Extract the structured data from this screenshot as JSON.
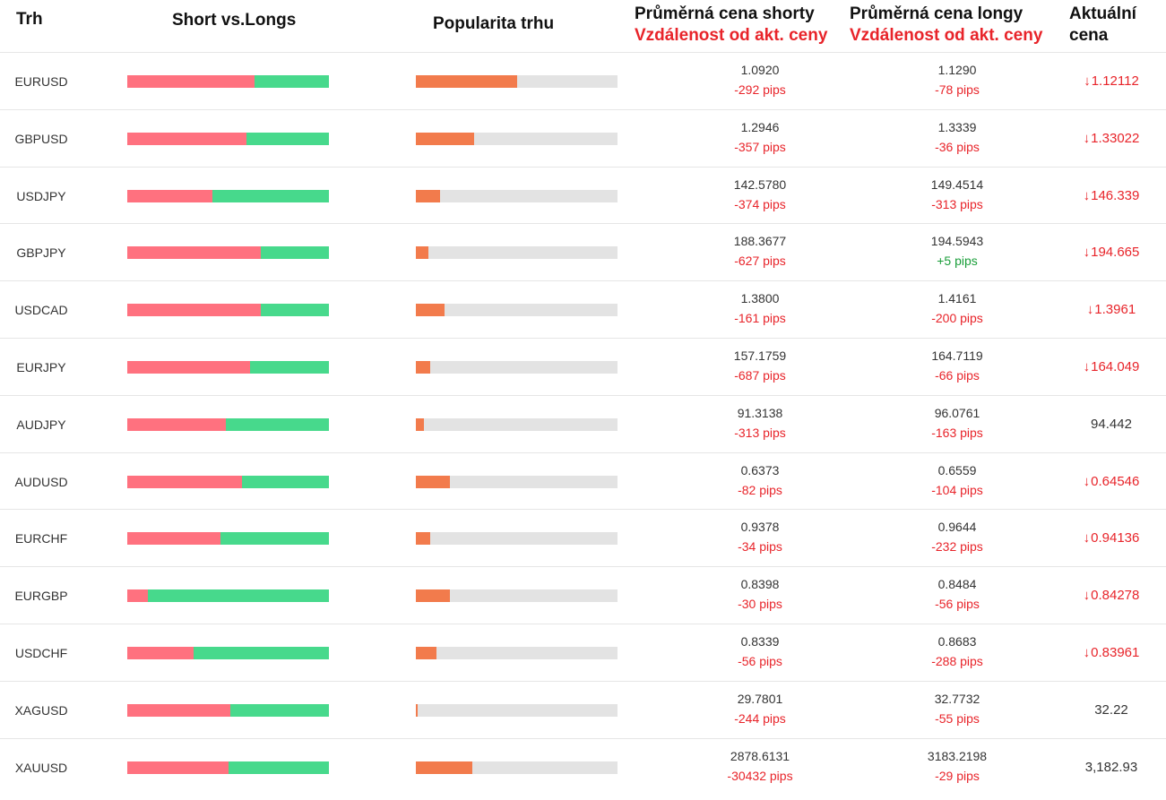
{
  "header": {
    "market": "Trh",
    "short_vs_long": "Short vs.Longs",
    "popularity": "Popularita trhu",
    "avg_short_1": "Průměrná cena shorty",
    "avg_short_2": "Vzdálenost od akt. ceny",
    "avg_long_1": "Průměrná cena longy",
    "avg_long_2": "Vzdálenost od akt. ceny",
    "current_1": "Aktuální",
    "current_2": "cena"
  },
  "colors": {
    "short": "#ff717f",
    "long": "#47d98c",
    "popularity": "#f27b4c",
    "negative": "#e8242a",
    "positive": "#1a9e3a"
  },
  "rows": [
    {
      "symbol": "EURUSD",
      "short_pct": 63,
      "popularity_pct": 50,
      "short_price": "1.0920",
      "short_dist": "-292 pips",
      "long_price": "1.1290",
      "long_dist": "-78 pips",
      "current": "1.12112",
      "down": true
    },
    {
      "symbol": "GBPUSD",
      "short_pct": 59,
      "popularity_pct": 29,
      "short_price": "1.2946",
      "short_dist": "-357 pips",
      "long_price": "1.3339",
      "long_dist": "-36 pips",
      "current": "1.33022",
      "down": true
    },
    {
      "symbol": "USDJPY",
      "short_pct": 42,
      "popularity_pct": 12,
      "short_price": "142.5780",
      "short_dist": "-374 pips",
      "long_price": "149.4514",
      "long_dist": "-313 pips",
      "current": "146.339",
      "down": true
    },
    {
      "symbol": "GBPJPY",
      "short_pct": 66,
      "popularity_pct": 6,
      "short_price": "188.3677",
      "short_dist": "-627 pips",
      "long_price": "194.5943",
      "long_dist": "+5 pips",
      "current": "194.665",
      "down": true
    },
    {
      "symbol": "USDCAD",
      "short_pct": 66,
      "popularity_pct": 14,
      "short_price": "1.3800",
      "short_dist": "-161 pips",
      "long_price": "1.4161",
      "long_dist": "-200 pips",
      "current": "1.3961",
      "down": true
    },
    {
      "symbol": "EURJPY",
      "short_pct": 61,
      "popularity_pct": 7,
      "short_price": "157.1759",
      "short_dist": "-687 pips",
      "long_price": "164.7119",
      "long_dist": "-66 pips",
      "current": "164.049",
      "down": true
    },
    {
      "symbol": "AUDJPY",
      "short_pct": 49,
      "popularity_pct": 4,
      "short_price": "91.3138",
      "short_dist": "-313 pips",
      "long_price": "96.0761",
      "long_dist": "-163 pips",
      "current": "94.442",
      "down": false
    },
    {
      "symbol": "AUDUSD",
      "short_pct": 57,
      "popularity_pct": 17,
      "short_price": "0.6373",
      "short_dist": "-82 pips",
      "long_price": "0.6559",
      "long_dist": "-104 pips",
      "current": "0.64546",
      "down": true
    },
    {
      "symbol": "EURCHF",
      "short_pct": 46,
      "popularity_pct": 7,
      "short_price": "0.9378",
      "short_dist": "-34 pips",
      "long_price": "0.9644",
      "long_dist": "-232 pips",
      "current": "0.94136",
      "down": true
    },
    {
      "symbol": "EURGBP",
      "short_pct": 10,
      "popularity_pct": 17,
      "short_price": "0.8398",
      "short_dist": "-30 pips",
      "long_price": "0.8484",
      "long_dist": "-56 pips",
      "current": "0.84278",
      "down": true
    },
    {
      "symbol": "USDCHF",
      "short_pct": 33,
      "popularity_pct": 10,
      "short_price": "0.8339",
      "short_dist": "-56 pips",
      "long_price": "0.8683",
      "long_dist": "-288 pips",
      "current": "0.83961",
      "down": true
    },
    {
      "symbol": "XAGUSD",
      "short_pct": 51,
      "popularity_pct": 1,
      "short_price": "29.7801",
      "short_dist": "-244 pips",
      "long_price": "32.7732",
      "long_dist": "-55 pips",
      "current": "32.22",
      "down": false
    },
    {
      "symbol": "XAUUSD",
      "short_pct": 50,
      "popularity_pct": 28,
      "short_price": "2878.6131",
      "short_dist": "-30432 pips",
      "long_price": "3183.2198",
      "long_dist": "-29 pips",
      "current": "3,182.93",
      "down": false
    }
  ]
}
